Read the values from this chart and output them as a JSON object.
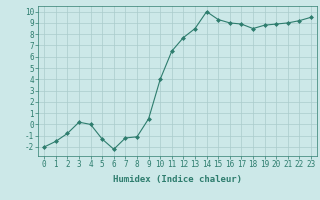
{
  "x": [
    0,
    1,
    2,
    3,
    4,
    5,
    6,
    7,
    8,
    9,
    10,
    11,
    12,
    13,
    14,
    15,
    16,
    17,
    18,
    19,
    20,
    21,
    22,
    23
  ],
  "y": [
    -2,
    -1.5,
    -0.8,
    0.2,
    0.0,
    -1.3,
    -2.2,
    -1.2,
    -1.1,
    0.5,
    4.0,
    6.5,
    7.7,
    8.5,
    10.0,
    9.3,
    9.0,
    8.9,
    8.5,
    8.8,
    8.9,
    9.0,
    9.2,
    9.5
  ],
  "line_color": "#2e7d6e",
  "marker": "D",
  "marker_size": 2,
  "bg_color": "#cce8e8",
  "grid_color": "#aacccc",
  "xlabel": "Humidex (Indice chaleur)",
  "ylim": [
    -2.8,
    10.5
  ],
  "xlim": [
    -0.5,
    23.5
  ],
  "yticks": [
    -2,
    -1,
    0,
    1,
    2,
    3,
    4,
    5,
    6,
    7,
    8,
    9,
    10
  ],
  "xticks": [
    0,
    1,
    2,
    3,
    4,
    5,
    6,
    7,
    8,
    9,
    10,
    11,
    12,
    13,
    14,
    15,
    16,
    17,
    18,
    19,
    20,
    21,
    22,
    23
  ],
  "tick_color": "#2e7d6e",
  "label_color": "#2e7d6e",
  "font_size_label": 6.5,
  "font_size_tick": 5.5
}
